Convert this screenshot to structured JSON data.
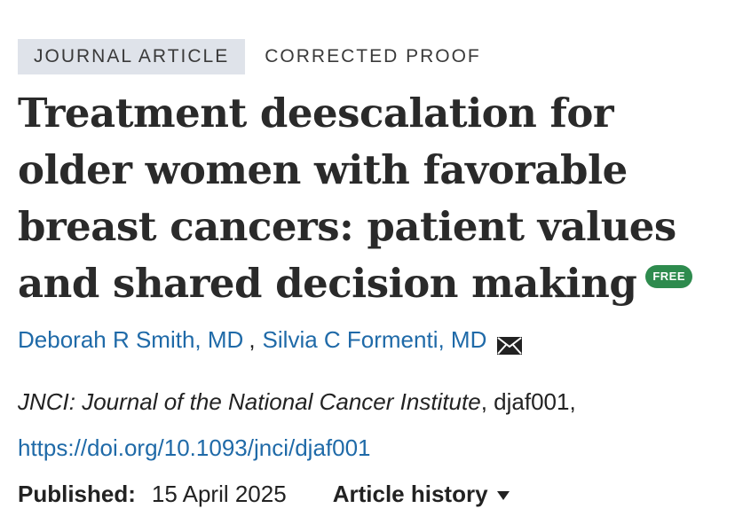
{
  "article": {
    "type_badge": "JOURNAL ARTICLE",
    "proof_status": "CORRECTED PROOF",
    "title": "Treatment deescalation for older women with favorable breast cancers: patient values and shared decision making",
    "free_badge": "FREE",
    "authors": [
      {
        "name": "Deborah R Smith, MD"
      },
      {
        "name": "Silvia C Formenti, MD"
      }
    ],
    "author_separator": ",",
    "contact_icon": "envelope-icon",
    "citation": {
      "journal": "JNCI: Journal of the National Cancer Institute",
      "article_id": ", djaf001,"
    },
    "doi": "https://doi.org/10.1093/jnci/djaf001",
    "published_label": "Published:",
    "published_date": "15 April 2025",
    "history_label": "Article history"
  },
  "colors": {
    "link": "#1f6aa8",
    "badge_bg": "#dfe3ea",
    "free_badge_bg": "#2e8b4e",
    "text": "#222222"
  }
}
